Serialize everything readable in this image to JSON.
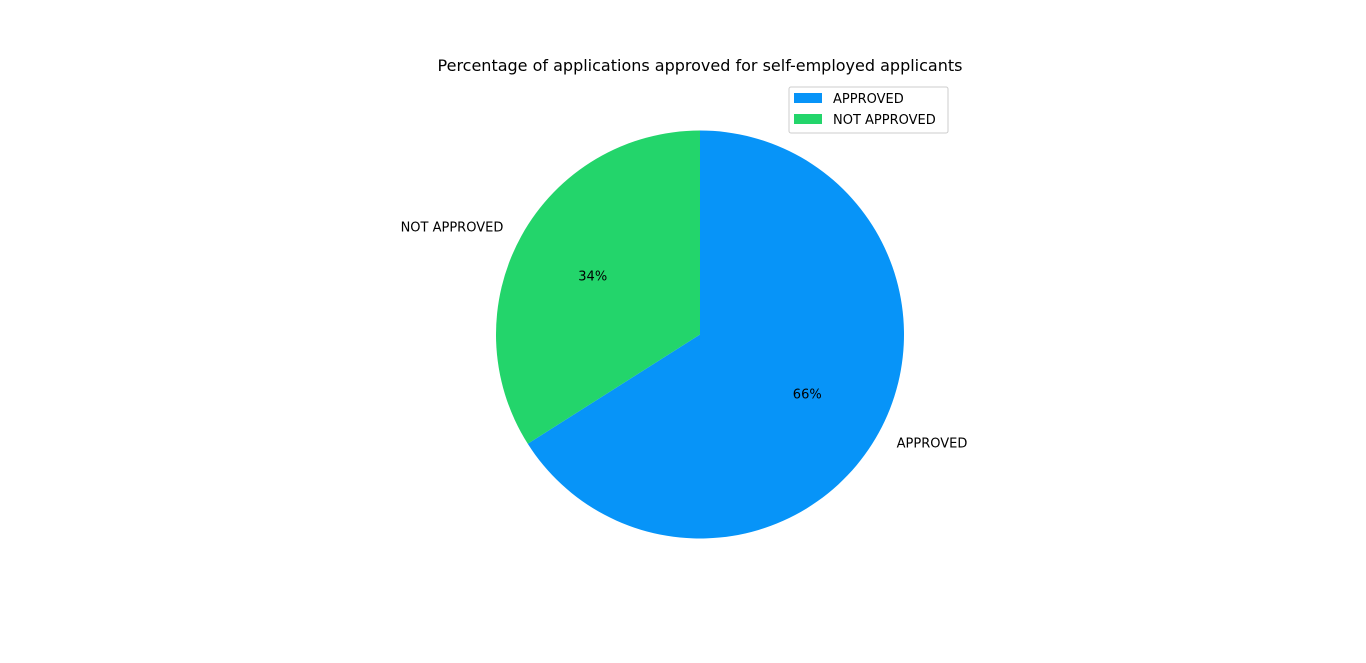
{
  "chart_data": {
    "type": "pie",
    "title": "Percentage of applications approved for self-employed applicants",
    "categories": [
      "APPROVED",
      "NOT APPROVED"
    ],
    "values": [
      66,
      34
    ],
    "percent_labels": [
      "66%",
      "34%"
    ],
    "colors": [
      "#0794f8",
      "#23d56b"
    ],
    "start_angle_deg": 90,
    "direction": "clockwise",
    "legend": {
      "position": "top-right",
      "entries": [
        "APPROVED",
        "NOT APPROVED"
      ]
    }
  }
}
